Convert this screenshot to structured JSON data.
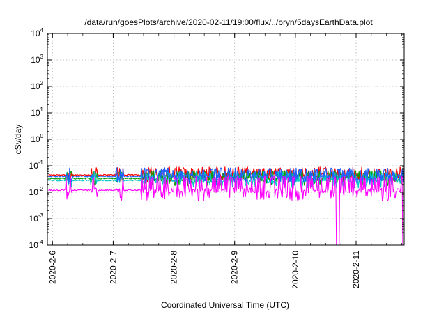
{
  "chart_data": {
    "type": "line",
    "title": "/data/run/goesPlots/archive/2020-02-11/19:00/flux/../bryn/5daysEarthData.plot",
    "xlabel": "Coordinated Universal Time (UTC)",
    "ylabel": "cSv/day",
    "y_scale": "log",
    "ylim": [
      0.0001,
      10000
    ],
    "y_ticks": [
      {
        "value": 0.0001,
        "base": "10",
        "exp": "-4"
      },
      {
        "value": 0.001,
        "base": "10",
        "exp": "-3"
      },
      {
        "value": 0.01,
        "base": "10",
        "exp": "-2"
      },
      {
        "value": 0.1,
        "base": "10",
        "exp": "-1"
      },
      {
        "value": 1,
        "base": "10",
        "exp": "0"
      },
      {
        "value": 10,
        "base": "10",
        "exp": "1"
      },
      {
        "value": 100,
        "base": "10",
        "exp": "2"
      },
      {
        "value": 1000,
        "base": "10",
        "exp": "3"
      },
      {
        "value": 10000,
        "base": "10",
        "exp": "4"
      }
    ],
    "xlim": [
      "2020-02-05T22:00",
      "2020-02-11T19:00"
    ],
    "x_ticks": [
      {
        "value": "2020-02-06",
        "label": "2020-2-6"
      },
      {
        "value": "2020-02-07",
        "label": "2020-2-7"
      },
      {
        "value": "2020-02-08",
        "label": "2020-2-8"
      },
      {
        "value": "2020-02-09",
        "label": "2020-2-9"
      },
      {
        "value": "2020-02-10",
        "label": "2020-2-10"
      },
      {
        "value": "2020-02-11",
        "label": "2020-2-11"
      }
    ],
    "grid": true,
    "legend": "none",
    "series": [
      {
        "color": "#ff0000",
        "base": 0.045,
        "spike": 0.075,
        "dip": 0.03
      },
      {
        "color": "#00a000",
        "base": 0.033,
        "spike": 0.055,
        "dip": 0.022
      },
      {
        "color": "#00c8c8",
        "base": 0.028,
        "spike": 0.05,
        "dip": 0.018
      },
      {
        "color": "#2060ff",
        "base": 0.04,
        "spike": 0.07,
        "dip": 0.025
      },
      {
        "color": "#ff00ff",
        "base": 0.012,
        "spike": 0.035,
        "dip": 0.006
      }
    ],
    "gaps": [
      {
        "start": "2020-02-10T16:00",
        "end": "2020-02-10T17:30",
        "series": [
          4
        ]
      },
      {
        "start": "2020-02-11T18:20",
        "end": "2020-02-11T19:00",
        "series": [
          4
        ]
      }
    ]
  }
}
